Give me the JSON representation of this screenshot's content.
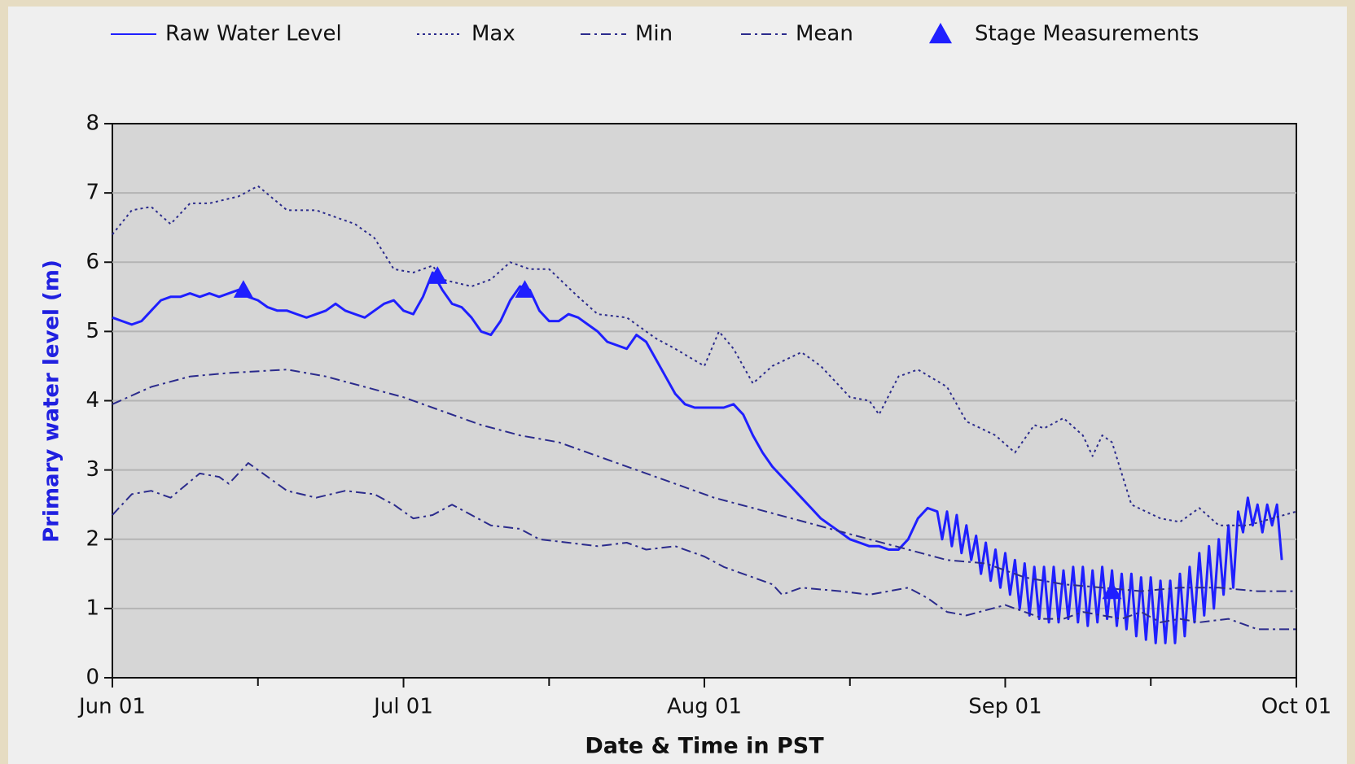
{
  "chart_data": {
    "type": "line",
    "xlabel": "Date & Time in PST",
    "ylabel": "Primary water level (m)",
    "legend": "top",
    "grid": true,
    "xlim": [
      0,
      122
    ],
    "xticks": [
      {
        "value": 0,
        "label": "Jun 01"
      },
      {
        "value": 30,
        "label": "Jul 01"
      },
      {
        "value": 61,
        "label": "Aug 01"
      },
      {
        "value": 92,
        "label": "Sep 01"
      },
      {
        "value": 122,
        "label": "Oct 01"
      }
    ],
    "xminor_ticks": [
      15,
      45,
      76,
      107
    ],
    "ylim": [
      0,
      8
    ],
    "yticks": [
      0,
      1,
      2,
      3,
      4,
      5,
      6,
      7,
      8
    ],
    "series": [
      {
        "name": "Raw Water Level",
        "color": "#1f1fff",
        "style": "solid",
        "x": [
          0,
          1,
          2,
          3,
          4,
          5,
          6,
          7,
          8,
          9,
          10,
          11,
          12,
          13,
          14,
          15,
          16,
          17,
          18,
          19,
          20,
          21,
          22,
          23,
          24,
          25,
          26,
          27,
          28,
          29,
          30,
          31,
          32,
          33,
          34,
          35,
          36,
          37,
          38,
          39,
          40,
          41,
          42,
          43,
          44,
          45,
          46,
          47,
          48,
          49,
          50,
          51,
          52,
          53,
          54,
          55,
          56,
          57,
          58,
          59,
          60,
          61,
          62,
          63,
          64,
          65,
          66,
          67,
          68,
          69,
          70,
          71,
          72,
          73,
          74,
          75,
          76,
          77,
          78,
          79,
          80,
          81,
          82,
          83,
          84,
          85,
          85.5,
          86,
          86.5,
          87,
          87.5,
          88,
          88.5,
          89,
          89.5,
          90,
          90.5,
          91,
          91.5,
          92,
          92.5,
          93,
          93.5,
          94,
          94.5,
          95,
          95.5,
          96,
          96.5,
          97,
          97.5,
          98,
          98.5,
          99,
          99.5,
          100,
          100.5,
          101,
          101.5,
          102,
          102.5,
          103,
          103.5,
          104,
          104.5,
          105,
          105.5,
          106,
          106.5,
          107,
          107.5,
          108,
          108.5,
          109,
          109.5,
          110,
          110.5,
          111,
          111.5,
          112,
          112.5,
          113,
          113.5,
          114,
          114.5,
          115,
          115.5,
          116,
          116.5,
          117,
          117.5,
          118,
          118.5,
          119,
          119.5,
          120,
          120.5
        ],
        "values": [
          5.2,
          5.15,
          5.1,
          5.15,
          5.3,
          5.45,
          5.5,
          5.5,
          5.55,
          5.5,
          5.55,
          5.5,
          5.55,
          5.6,
          5.5,
          5.45,
          5.35,
          5.3,
          5.3,
          5.25,
          5.2,
          5.25,
          5.3,
          5.4,
          5.3,
          5.25,
          5.2,
          5.3,
          5.4,
          5.45,
          5.3,
          5.25,
          5.5,
          5.85,
          5.6,
          5.4,
          5.35,
          5.2,
          5.0,
          4.95,
          5.15,
          5.45,
          5.65,
          5.6,
          5.3,
          5.15,
          5.15,
          5.25,
          5.2,
          5.1,
          5.0,
          4.85,
          4.8,
          4.75,
          4.95,
          4.85,
          4.6,
          4.35,
          4.1,
          3.95,
          3.9,
          3.9,
          3.9,
          3.9,
          3.95,
          3.8,
          3.5,
          3.25,
          3.05,
          2.9,
          2.75,
          2.6,
          2.45,
          2.3,
          2.2,
          2.1,
          2.0,
          1.95,
          1.9,
          1.9,
          1.85,
          1.85,
          2.0,
          2.3,
          2.45,
          2.4,
          2.0,
          2.4,
          1.9,
          2.35,
          1.8,
          2.2,
          1.7,
          2.05,
          1.5,
          1.95,
          1.4,
          1.85,
          1.3,
          1.8,
          1.2,
          1.7,
          1.0,
          1.65,
          0.9,
          1.6,
          0.85,
          1.6,
          0.8,
          1.6,
          0.8,
          1.55,
          0.85,
          1.6,
          0.8,
          1.6,
          0.75,
          1.55,
          0.8,
          1.6,
          0.85,
          1.55,
          0.75,
          1.5,
          0.7,
          1.5,
          0.6,
          1.45,
          0.55,
          1.45,
          0.5,
          1.4,
          0.5,
          1.4,
          0.5,
          1.5,
          0.6,
          1.6,
          0.8,
          1.8,
          0.9,
          1.9,
          1.0,
          2.0,
          1.2,
          2.2,
          1.3,
          2.4,
          2.1,
          2.6,
          2.2,
          2.5,
          2.1,
          2.5,
          2.2,
          2.5,
          1.7
        ]
      },
      {
        "name": "Max",
        "color": "#2b2b8c",
        "style": "dotted",
        "x": [
          0,
          2,
          4,
          6,
          8,
          10,
          13,
          15,
          18,
          21,
          25,
          27,
          29,
          31,
          33,
          34,
          37,
          39,
          41,
          43,
          45,
          48,
          50,
          53,
          56,
          58,
          61,
          62.5,
          64,
          66,
          68,
          71,
          73,
          76,
          78,
          79,
          81,
          83,
          86,
          88,
          91,
          93,
          95,
          96,
          98,
          100,
          101,
          102,
          103,
          105,
          108,
          110,
          112,
          114,
          117,
          122
        ],
        "values": [
          6.4,
          6.75,
          6.8,
          6.55,
          6.85,
          6.85,
          6.95,
          7.1,
          6.75,
          6.75,
          6.55,
          6.35,
          5.9,
          5.85,
          5.95,
          5.75,
          5.65,
          5.75,
          6.0,
          5.9,
          5.9,
          5.5,
          5.25,
          5.2,
          4.9,
          4.75,
          4.5,
          5.0,
          4.75,
          4.25,
          4.5,
          4.7,
          4.5,
          4.05,
          4.0,
          3.8,
          4.35,
          4.45,
          4.2,
          3.7,
          3.5,
          3.25,
          3.65,
          3.6,
          3.75,
          3.5,
          3.2,
          3.5,
          3.4,
          2.5,
          2.3,
          2.25,
          2.45,
          2.2,
          2.2,
          2.4
        ]
      },
      {
        "name": "Min",
        "color": "#2b2b8c",
        "style": "dashdot",
        "x": [
          0,
          2,
          4,
          6,
          9,
          11,
          12,
          14,
          16,
          18,
          21,
          24,
          27,
          29,
          31,
          33,
          35,
          37,
          39,
          42,
          44,
          47,
          50,
          53,
          55,
          58,
          61,
          63,
          66,
          68,
          69,
          71,
          75,
          78,
          80,
          82,
          84,
          86,
          88,
          92,
          94,
          96,
          98,
          100,
          102,
          104,
          106,
          108,
          110,
          112,
          115,
          118,
          122
        ],
        "values": [
          2.35,
          2.65,
          2.7,
          2.6,
          2.95,
          2.9,
          2.8,
          3.1,
          2.9,
          2.7,
          2.6,
          2.7,
          2.65,
          2.5,
          2.3,
          2.35,
          2.5,
          2.35,
          2.2,
          2.15,
          2.0,
          1.95,
          1.9,
          1.95,
          1.85,
          1.9,
          1.75,
          1.6,
          1.45,
          1.35,
          1.2,
          1.3,
          1.25,
          1.2,
          1.25,
          1.3,
          1.15,
          0.95,
          0.9,
          1.05,
          0.95,
          0.85,
          0.85,
          0.95,
          0.9,
          0.85,
          0.95,
          0.8,
          0.85,
          0.8,
          0.85,
          0.7,
          0.7
        ]
      },
      {
        "name": "Mean",
        "color": "#2b2b8c",
        "style": "dashdot",
        "x": [
          0,
          4,
          8,
          12,
          18,
          22,
          26,
          30,
          34,
          38,
          42,
          46,
          50,
          54,
          58,
          62,
          66,
          70,
          74,
          78,
          82,
          86,
          90,
          94,
          98,
          102,
          106,
          110,
          114,
          118,
          122
        ],
        "values": [
          3.95,
          4.2,
          4.35,
          4.4,
          4.45,
          4.35,
          4.2,
          4.05,
          3.85,
          3.65,
          3.5,
          3.4,
          3.2,
          3.0,
          2.8,
          2.6,
          2.45,
          2.3,
          2.15,
          2.0,
          1.85,
          1.7,
          1.65,
          1.45,
          1.35,
          1.3,
          1.25,
          1.3,
          1.3,
          1.25,
          1.25
        ]
      },
      {
        "name": "Stage Measurements",
        "color": "#1f1fff",
        "style": "marker",
        "x": [
          13.5,
          33.5,
          42.5,
          103
        ],
        "values": [
          5.6,
          5.8,
          5.6,
          1.25
        ]
      }
    ]
  }
}
